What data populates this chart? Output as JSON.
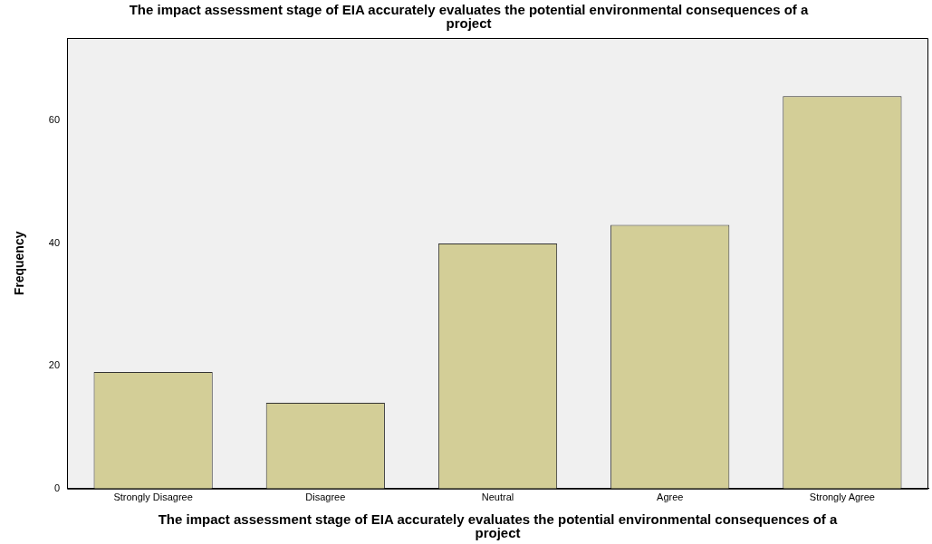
{
  "chart_data": {
    "type": "bar",
    "title": "The impact assessment stage of EIA accurately evaluates the potential environmental consequences of a project",
    "xlabel": "The impact assessment stage of EIA accurately evaluates the potential environmental consequences of a project",
    "ylabel": "Frequency",
    "categories": [
      "Strongly Disagree",
      "Disagree",
      "Neutral",
      "Agree",
      "Strongly Agree"
    ],
    "values": [
      19,
      14,
      40,
      43,
      64
    ],
    "color": "#d3ce97",
    "ylim": [
      0,
      73.5
    ],
    "yticks": [
      0,
      20,
      40,
      60
    ],
    "grid": false,
    "legend": false
  }
}
